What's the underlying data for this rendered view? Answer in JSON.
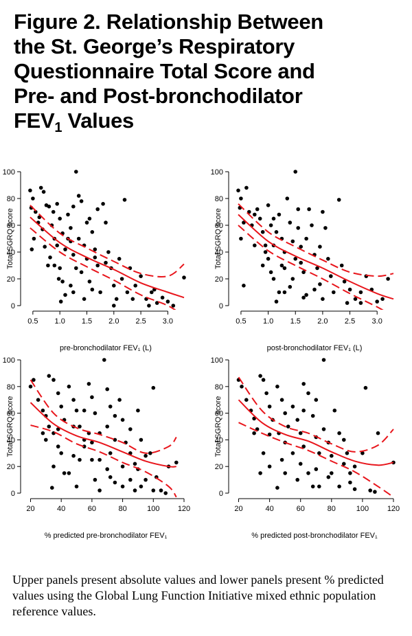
{
  "header": {
    "title_lines": [
      "Figure 2. Relationship Between",
      "the St. George’s Respiratory",
      "Questionnaire Total Score and",
      "Pre- and Post-bronchodilator"
    ],
    "title_last_main": "FEV",
    "title_last_sub": "1",
    "title_last_rest": " Values"
  },
  "caption": "Upper panels present absolute values and lower panels present % predicted values using the Global Lung Function Initiative mixed ethnic population reference values.",
  "colors": {
    "fit": "#e8151b",
    "points": "#000000"
  },
  "chart_data": [
    {
      "type": "scatter",
      "xlabel": "pre-bronchodilator FEV₁ (L)",
      "ylabel": "Total SGRQ score",
      "xlim": [
        0.4,
        3.3
      ],
      "ylim": [
        0,
        100
      ],
      "xticks": [
        0.5,
        1.0,
        1.5,
        2.0,
        2.5,
        3.0
      ],
      "yticks": [
        0,
        20,
        40,
        60,
        80,
        100
      ],
      "fit_x": [
        0.45,
        1.0,
        1.5,
        2.0,
        2.5,
        3.0,
        3.3
      ],
      "fit": [
        66,
        47,
        36,
        27,
        17,
        10,
        6
      ],
      "ci_upper": [
        75,
        54,
        43,
        33,
        24,
        22,
        31
      ],
      "ci_lower": [
        58,
        40,
        29,
        19,
        8,
        0,
        -8
      ],
      "points": [
        [
          0.45,
          86
        ],
        [
          0.5,
          80
        ],
        [
          0.47,
          73
        ],
        [
          0.55,
          70
        ],
        [
          0.6,
          62
        ],
        [
          0.52,
          50
        ],
        [
          0.48,
          42
        ],
        [
          0.65,
          88
        ],
        [
          0.7,
          85
        ],
        [
          0.75,
          75
        ],
        [
          0.62,
          66
        ],
        [
          0.68,
          57
        ],
        [
          0.72,
          44
        ],
        [
          0.8,
          74
        ],
        [
          0.85,
          60
        ],
        [
          0.9,
          50
        ],
        [
          0.82,
          36
        ],
        [
          0.78,
          30
        ],
        [
          0.95,
          76
        ],
        [
          1.0,
          65
        ],
        [
          1.05,
          54
        ],
        [
          1.1,
          42
        ],
        [
          1.0,
          28
        ],
        [
          0.98,
          20
        ],
        [
          1.02,
          3
        ],
        [
          1.15,
          68
        ],
        [
          1.2,
          58
        ],
        [
          1.25,
          38
        ],
        [
          1.3,
          28
        ],
        [
          1.2,
          15
        ],
        [
          1.1,
          8
        ],
        [
          1.35,
          82
        ],
        [
          1.4,
          78
        ],
        [
          1.35,
          50
        ],
        [
          1.45,
          45
        ],
        [
          1.5,
          35
        ],
        [
          1.4,
          25
        ],
        [
          1.3,
          100
        ],
        [
          1.55,
          65
        ],
        [
          1.6,
          55
        ],
        [
          1.65,
          42
        ],
        [
          1.7,
          30
        ],
        [
          1.75,
          10
        ],
        [
          1.8,
          76
        ],
        [
          1.85,
          62
        ],
        [
          1.9,
          40
        ],
        [
          1.95,
          28
        ],
        [
          2.0,
          15
        ],
        [
          2.05,
          5
        ],
        [
          2.1,
          35
        ],
        [
          2.15,
          20
        ],
        [
          2.2,
          79
        ],
        [
          2.25,
          10
        ],
        [
          2.3,
          28
        ],
        [
          2.4,
          15
        ],
        [
          2.5,
          22
        ],
        [
          2.6,
          5
        ],
        [
          2.7,
          10
        ],
        [
          2.8,
          2
        ],
        [
          2.9,
          6
        ],
        [
          3.0,
          3
        ],
        [
          3.1,
          0
        ],
        [
          3.3,
          21
        ],
        [
          1.25,
          10
        ],
        [
          1.6,
          12
        ],
        [
          0.9,
          30
        ],
        [
          1.45,
          5
        ],
        [
          2.0,
          0
        ],
        [
          1.7,
          72
        ],
        [
          1.5,
          62
        ],
        [
          1.15,
          50
        ],
        [
          0.95,
          45
        ],
        [
          1.05,
          18
        ],
        [
          1.55,
          18
        ],
        [
          1.85,
          32
        ],
        [
          2.35,
          5
        ],
        [
          2.65,
          0
        ],
        [
          2.75,
          12
        ],
        [
          1.25,
          74
        ],
        [
          1.65,
          36
        ],
        [
          1.2,
          48
        ],
        [
          0.88,
          70
        ]
      ]
    },
    {
      "type": "scatter",
      "xlabel": "post-bronchodilator FEV₁ (L)",
      "ylabel": "Total SGRQ score",
      "xlim": [
        0.4,
        3.3
      ],
      "ylim": [
        0,
        100
      ],
      "xticks": [
        0.5,
        1.0,
        1.5,
        2.0,
        2.5,
        3.0
      ],
      "yticks": [
        0,
        20,
        40,
        60,
        80,
        100
      ],
      "fit_x": [
        0.45,
        1.0,
        1.5,
        2.0,
        2.5,
        3.0,
        3.3
      ],
      "fit": [
        68,
        48,
        37,
        28,
        18,
        9,
        5
      ],
      "ci_upper": [
        76,
        55,
        44,
        34,
        25,
        22,
        24
      ],
      "ci_lower": [
        60,
        41,
        30,
        20,
        9,
        -1,
        -8
      ],
      "points": [
        [
          0.45,
          86
        ],
        [
          0.5,
          80
        ],
        [
          0.48,
          73
        ],
        [
          0.55,
          62
        ],
        [
          0.5,
          50
        ],
        [
          0.6,
          88
        ],
        [
          0.65,
          70
        ],
        [
          0.7,
          60
        ],
        [
          0.75,
          45
        ],
        [
          0.55,
          15
        ],
        [
          0.8,
          72
        ],
        [
          0.85,
          65
        ],
        [
          0.9,
          55
        ],
        [
          0.95,
          40
        ],
        [
          1.0,
          75
        ],
        [
          1.05,
          60
        ],
        [
          1.1,
          45
        ],
        [
          1.0,
          35
        ],
        [
          1.05,
          25
        ],
        [
          1.1,
          20
        ],
        [
          1.15,
          3
        ],
        [
          1.2,
          68
        ],
        [
          1.25,
          50
        ],
        [
          1.3,
          40
        ],
        [
          1.25,
          30
        ],
        [
          1.3,
          10
        ],
        [
          1.35,
          80
        ],
        [
          1.4,
          62
        ],
        [
          1.45,
          48
        ],
        [
          1.5,
          100
        ],
        [
          1.5,
          35
        ],
        [
          1.45,
          20
        ],
        [
          1.55,
          58
        ],
        [
          1.6,
          44
        ],
        [
          1.65,
          25
        ],
        [
          1.7,
          8
        ],
        [
          1.75,
          72
        ],
        [
          1.8,
          60
        ],
        [
          1.85,
          38
        ],
        [
          1.9,
          28
        ],
        [
          1.95,
          16
        ],
        [
          2.0,
          70
        ],
        [
          2.05,
          58
        ],
        [
          2.1,
          35
        ],
        [
          2.15,
          22
        ],
        [
          2.2,
          10
        ],
        [
          2.3,
          79
        ],
        [
          2.35,
          30
        ],
        [
          2.4,
          18
        ],
        [
          2.5,
          12
        ],
        [
          2.6,
          5
        ],
        [
          2.7,
          2
        ],
        [
          2.8,
          22
        ],
        [
          2.9,
          12
        ],
        [
          3.0,
          3
        ],
        [
          3.1,
          5
        ],
        [
          3.2,
          20
        ],
        [
          1.3,
          28
        ],
        [
          1.65,
          6
        ],
        [
          0.9,
          30
        ],
        [
          1.7,
          50
        ],
        [
          2.0,
          5
        ],
        [
          1.15,
          55
        ],
        [
          0.95,
          45
        ],
        [
          1.4,
          14
        ],
        [
          1.85,
          12
        ],
        [
          2.45,
          2
        ],
        [
          2.7,
          10
        ],
        [
          1.55,
          72
        ],
        [
          1.1,
          65
        ],
        [
          0.75,
          68
        ],
        [
          1.95,
          44
        ],
        [
          1.2,
          10
        ],
        [
          1.6,
          32
        ]
      ]
    },
    {
      "type": "scatter",
      "xlabel": "% predicted pre-bronchodilator FEV₁",
      "ylabel": "Total SGRQ score",
      "xlim": [
        18,
        120
      ],
      "ylim": [
        0,
        100
      ],
      "xticks": [
        20,
        40,
        60,
        80,
        100,
        120
      ],
      "yticks": [
        0,
        20,
        40,
        60,
        80,
        100
      ],
      "fit_x": [
        20,
        35,
        50,
        65,
        80,
        95,
        110,
        115
      ],
      "fit": [
        68,
        52,
        43,
        38,
        31,
        24,
        20,
        20
      ],
      "ci_upper": [
        85,
        60,
        49,
        44,
        38,
        30,
        35,
        42
      ],
      "ci_lower": [
        51,
        46,
        37,
        31,
        23,
        16,
        5,
        -3
      ],
      "points": [
        [
          20,
          80
        ],
        [
          22,
          85
        ],
        [
          25,
          70
        ],
        [
          28,
          62
        ],
        [
          30,
          58
        ],
        [
          32,
          50
        ],
        [
          35,
          45
        ],
        [
          28,
          45
        ],
        [
          32,
          88
        ],
        [
          35,
          85
        ],
        [
          38,
          75
        ],
        [
          40,
          65
        ],
        [
          42,
          55
        ],
        [
          38,
          35
        ],
        [
          35,
          20
        ],
        [
          34,
          4
        ],
        [
          45,
          80
        ],
        [
          48,
          70
        ],
        [
          50,
          62
        ],
        [
          52,
          50
        ],
        [
          55,
          40
        ],
        [
          48,
          28
        ],
        [
          45,
          15
        ],
        [
          50,
          5
        ],
        [
          58,
          82
        ],
        [
          60,
          72
        ],
        [
          62,
          60
        ],
        [
          58,
          45
        ],
        [
          55,
          35
        ],
        [
          60,
          25
        ],
        [
          62,
          10
        ],
        [
          65,
          2
        ],
        [
          68,
          100
        ],
        [
          70,
          78
        ],
        [
          72,
          65
        ],
        [
          70,
          50
        ],
        [
          75,
          40
        ],
        [
          72,
          30
        ],
        [
          70,
          18
        ],
        [
          75,
          8
        ],
        [
          78,
          70
        ],
        [
          80,
          55
        ],
        [
          82,
          38
        ],
        [
          85,
          30
        ],
        [
          80,
          20
        ],
        [
          85,
          10
        ],
        [
          88,
          2
        ],
        [
          90,
          62
        ],
        [
          92,
          40
        ],
        [
          95,
          28
        ],
        [
          90,
          18
        ],
        [
          92,
          5
        ],
        [
          98,
          30
        ],
        [
          100,
          79
        ],
        [
          102,
          12
        ],
        [
          105,
          2
        ],
        [
          108,
          0
        ],
        [
          110,
          20
        ],
        [
          115,
          23
        ],
        [
          40,
          30
        ],
        [
          42,
          15
        ],
        [
          55,
          62
        ],
        [
          65,
          45
        ],
        [
          75,
          58
        ],
        [
          85,
          48
        ],
        [
          95,
          10
        ],
        [
          38,
          48
        ],
        [
          60,
          38
        ],
        [
          80,
          5
        ],
        [
          48,
          50
        ],
        [
          65,
          25
        ],
        [
          88,
          22
        ],
        [
          100,
          2
        ],
        [
          30,
          40
        ],
        [
          52,
          25
        ],
        [
          72,
          12
        ]
      ]
    },
    {
      "type": "scatter",
      "xlabel": "% predicted post-bronchodilator FEV₁",
      "ylabel": "Total SGRQ score",
      "xlim": [
        18,
        120
      ],
      "ylim": [
        0,
        100
      ],
      "xticks": [
        20,
        40,
        60,
        80,
        100,
        120
      ],
      "yticks": [
        0,
        20,
        40,
        60,
        80,
        100
      ],
      "fit_x": [
        20,
        35,
        50,
        65,
        80,
        95,
        110,
        120
      ],
      "fit": [
        70,
        53,
        44,
        39,
        31,
        24,
        21,
        23
      ],
      "ci_upper": [
        87,
        62,
        50,
        45,
        37,
        31,
        36,
        48
      ],
      "ci_lower": [
        53,
        45,
        38,
        32,
        24,
        16,
        5,
        -3
      ],
      "points": [
        [
          20,
          85
        ],
        [
          22,
          80
        ],
        [
          25,
          70
        ],
        [
          28,
          62
        ],
        [
          30,
          56
        ],
        [
          32,
          48
        ],
        [
          34,
          88
        ],
        [
          36,
          85
        ],
        [
          38,
          75
        ],
        [
          40,
          65
        ],
        [
          42,
          55
        ],
        [
          40,
          44
        ],
        [
          36,
          30
        ],
        [
          34,
          15
        ],
        [
          45,
          80
        ],
        [
          48,
          70
        ],
        [
          50,
          60
        ],
        [
          52,
          50
        ],
        [
          50,
          38
        ],
        [
          48,
          25
        ],
        [
          45,
          4
        ],
        [
          55,
          65
        ],
        [
          58,
          55
        ],
        [
          60,
          45
        ],
        [
          62,
          82
        ],
        [
          65,
          75
        ],
        [
          62,
          35
        ],
        [
          60,
          22
        ],
        [
          58,
          10
        ],
        [
          68,
          58
        ],
        [
          70,
          42
        ],
        [
          72,
          30
        ],
        [
          70,
          18
        ],
        [
          68,
          5
        ],
        [
          75,
          100
        ],
        [
          75,
          48
        ],
        [
          78,
          38
        ],
        [
          80,
          28
        ],
        [
          78,
          12
        ],
        [
          82,
          62
        ],
        [
          85,
          45
        ],
        [
          88,
          22
        ],
        [
          85,
          5
        ],
        [
          90,
          30
        ],
        [
          92,
          15
        ],
        [
          95,
          3
        ],
        [
          100,
          30
        ],
        [
          102,
          79
        ],
        [
          105,
          2
        ],
        [
          108,
          1
        ],
        [
          110,
          45
        ],
        [
          120,
          23
        ],
        [
          40,
          20
        ],
        [
          55,
          30
        ],
        [
          65,
          15
        ],
        [
          72,
          5
        ],
        [
          88,
          40
        ],
        [
          95,
          20
        ],
        [
          30,
          45
        ],
        [
          50,
          15
        ],
        [
          62,
          62
        ],
        [
          80,
          15
        ],
        [
          92,
          8
        ],
        [
          46,
          45
        ],
        [
          70,
          70
        ]
      ]
    }
  ]
}
